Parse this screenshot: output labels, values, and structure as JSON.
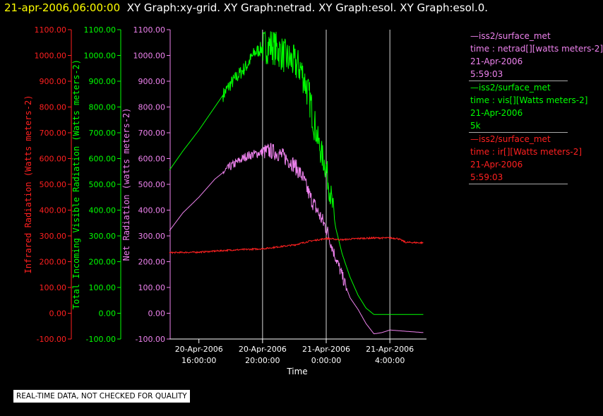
{
  "header": {
    "time_label": "21-apr-2006,06:00:00",
    "graphs_label": "XY Graph:xy-grid.  XY Graph:netrad.  XY Graph:esol.  XY Graph:esol.0."
  },
  "legend": [
    {
      "lines": [
        "—iss2/surface_met",
        "time : netrad[][watts meters-2]",
        "21-Apr-2006",
        "5:59:03"
      ],
      "color": "#ee82ee"
    },
    {
      "lines": [
        "—iss2/surface_met",
        "time : vis[][Watts meters-2]",
        "21-Apr-2006",
        "5k"
      ],
      "color": "#00ff00"
    },
    {
      "lines": [
        "—iss2/surface_met",
        "time : ir[][Watts meters-2]",
        "21-Apr-2006",
        "5:59:03"
      ],
      "color": "#ff2020"
    }
  ],
  "footer": {
    "note": "REAL-TIME DATA, NOT CHECKED FOR QUALITY"
  },
  "chart_data": {
    "type": "line",
    "xlabel": "Time",
    "x_ticks": [
      {
        "hour": 16,
        "date": "20-Apr-2006",
        "time": "16:00:00"
      },
      {
        "hour": 20,
        "date": "20-Apr-2006",
        "time": "20:00:00"
      },
      {
        "hour": 24,
        "date": "21-Apr-2006",
        "time": "0:00:00"
      },
      {
        "hour": 28,
        "date": "21-Apr-2006",
        "time": "4:00:00"
      }
    ],
    "xlim_hours": [
      14.15,
      30.3
    ],
    "vertical_grid_hours": [
      20,
      24,
      28
    ],
    "axes": [
      {
        "id": "ir",
        "label": "Infrared Radiation (Watts meters-2)",
        "color": "#ff2020",
        "ticks": [
          "1100.00",
          "1000.00",
          "900.00",
          "800.00",
          "700.00",
          "600.00",
          "500.00",
          "400.00",
          "300.00",
          "200.00",
          "100.00",
          "0.00",
          "-100.00"
        ],
        "ylim": [
          -100,
          1100
        ]
      },
      {
        "id": "vis",
        "label": "Total Incoming Visible Radiation (Watts meters-2)",
        "color": "#00ff00",
        "ticks": [
          "1100.00",
          "1000.00",
          "900.00",
          "800.00",
          "700.00",
          "600.00",
          "500.00",
          "400.00",
          "300.00",
          "200.00",
          "100.00",
          "0.00",
          "-100.00"
        ],
        "ylim": [
          -100,
          1100
        ]
      },
      {
        "id": "netrad",
        "label": "Net Radiation (watts meters-2)",
        "color": "#ee82ee",
        "ticks": [
          "1100.00",
          "1000.00",
          "900.00",
          "800.00",
          "700.00",
          "600.00",
          "500.00",
          "400.00",
          "300.00",
          "200.00",
          "100.00",
          "0.00",
          "-100.00"
        ],
        "ylim": [
          -100,
          1100
        ]
      }
    ],
    "series": [
      {
        "name": "vis",
        "color": "#00ff00",
        "jitter": [
          [
            17.5,
            20,
            28
          ],
          [
            20,
            23.3,
            70
          ],
          [
            23.3,
            24.5,
            55
          ]
        ],
        "points": [
          [
            14.15,
            555
          ],
          [
            15,
            630
          ],
          [
            16,
            710
          ],
          [
            17,
            800
          ],
          [
            18,
            890
          ],
          [
            19,
            960
          ],
          [
            19.5,
            1010
          ],
          [
            20,
            1030
          ],
          [
            20.5,
            1040
          ],
          [
            21,
            1020
          ],
          [
            21.5,
            990
          ],
          [
            22,
            970
          ],
          [
            22.4,
            950
          ],
          [
            22.7,
            890
          ],
          [
            23,
            820
          ],
          [
            23.3,
            720
          ],
          [
            23.6,
            640
          ],
          [
            24,
            560
          ],
          [
            24.3,
            450
          ],
          [
            24.6,
            330
          ],
          [
            25,
            230
          ],
          [
            25.5,
            140
          ],
          [
            26,
            70
          ],
          [
            26.5,
            20
          ],
          [
            27,
            -5
          ],
          [
            28,
            -5
          ],
          [
            29,
            -5
          ],
          [
            30.1,
            -5
          ]
        ]
      },
      {
        "name": "netrad",
        "color": "#ee82ee",
        "jitter": [
          [
            17.5,
            20,
            18
          ],
          [
            20,
            24.2,
            32
          ],
          [
            24.2,
            25.3,
            24
          ]
        ],
        "points": [
          [
            14.15,
            320
          ],
          [
            15,
            390
          ],
          [
            16,
            450
          ],
          [
            17,
            520
          ],
          [
            18,
            570
          ],
          [
            19,
            610
          ],
          [
            20,
            625
          ],
          [
            20.5,
            630
          ],
          [
            21,
            620
          ],
          [
            21.5,
            600
          ],
          [
            22,
            575
          ],
          [
            22.5,
            530
          ],
          [
            23,
            450
          ],
          [
            23.5,
            390
          ],
          [
            24,
            330
          ],
          [
            24.4,
            250
          ],
          [
            24.8,
            180
          ],
          [
            25.2,
            110
          ],
          [
            25.5,
            60
          ],
          [
            26,
            15
          ],
          [
            26.5,
            -40
          ],
          [
            27,
            -80
          ],
          [
            27.5,
            -75
          ],
          [
            28,
            -65
          ],
          [
            29,
            -70
          ],
          [
            30.1,
            -75
          ]
        ]
      },
      {
        "name": "ir",
        "color": "#ff2020",
        "jitter": [
          [
            14.15,
            30.1,
            3
          ]
        ],
        "points": [
          [
            14.15,
            235
          ],
          [
            16,
            237
          ],
          [
            18,
            245
          ],
          [
            20,
            250
          ],
          [
            22,
            265
          ],
          [
            23,
            280
          ],
          [
            24,
            290
          ],
          [
            25,
            285
          ],
          [
            26,
            290
          ],
          [
            27,
            292
          ],
          [
            28,
            292
          ],
          [
            28.5,
            290
          ],
          [
            29,
            275
          ],
          [
            30.1,
            273
          ]
        ]
      }
    ]
  }
}
